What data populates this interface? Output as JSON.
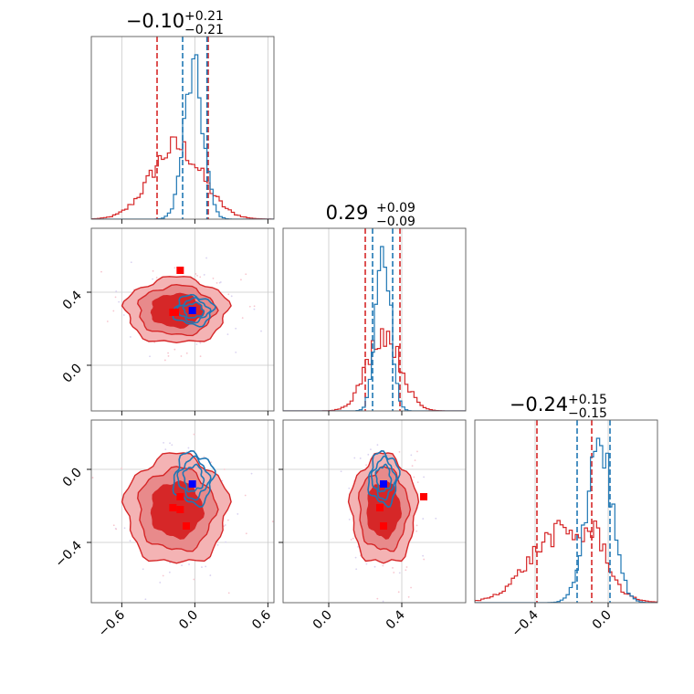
{
  "colors": {
    "red": "#d62728",
    "blue": "#1f77b4",
    "marker_blue": "#0000ff",
    "marker_red": "#ff0000",
    "red_fill_light": "#f4b3b4",
    "red_fill_mid": "#e88a8b"
  },
  "chart_data": {
    "type": "corner",
    "parameters": [
      {
        "title_value": "−0.10",
        "title_plus": "+0.21",
        "title_minus": "−0.21",
        "range": [
          -0.85,
          0.65
        ],
        "ticks": [
          -0.6,
          0.0,
          0.6
        ],
        "tick_labels": [
          "−0.6",
          "0.0",
          "0.6"
        ]
      },
      {
        "title_value": "0.29",
        "title_plus": "+0.09",
        "title_minus": "−0.09",
        "range": [
          -0.25,
          0.75
        ],
        "ticks": [
          0.0,
          0.4
        ],
        "tick_labels": [
          "0.0",
          "0.4"
        ]
      },
      {
        "title_value": "−0.24",
        "title_plus": "+0.15",
        "title_minus": "−0.15",
        "range": [
          -0.73,
          0.27
        ],
        "ticks": [
          -0.4,
          0.0
        ],
        "tick_labels": [
          "−0.4",
          "0.0"
        ]
      }
    ],
    "series": [
      {
        "key": "red",
        "color": "#d62728",
        "centers": [
          -0.15,
          0.3,
          -0.22
        ],
        "sigmas": [
          0.21,
          0.09,
          0.15
        ],
        "quantiles": [
          [
            -0.31,
            0.11
          ],
          [
            0.2,
            0.39
          ],
          [
            -0.39,
            -0.09
          ]
        ]
      },
      {
        "key": "blue",
        "color": "#1f77b4",
        "centers": [
          -0.01,
          0.3,
          -0.05
        ],
        "sigmas": [
          0.08,
          0.04,
          0.07
        ],
        "quantiles": [
          [
            -0.1,
            0.1
          ],
          [
            0.24,
            0.35
          ],
          [
            -0.17,
            0.01
          ]
        ]
      }
    ],
    "markers": {
      "blue": [
        {
          "params": [
            0,
            1
          ],
          "x": -0.02,
          "y": 0.3
        },
        {
          "params": [
            0,
            2
          ],
          "x": -0.02,
          "y": -0.08
        },
        {
          "params": [
            1,
            2
          ],
          "x": 0.3,
          "y": -0.08
        }
      ],
      "red": [
        {
          "params": [
            0,
            1
          ],
          "x": -0.12,
          "y": 0.52
        },
        {
          "params": [
            0,
            1
          ],
          "x": -0.18,
          "y": 0.29
        },
        {
          "params": [
            0,
            1
          ],
          "x": -0.16,
          "y": 0.29
        },
        {
          "params": [
            0,
            2
          ],
          "x": -0.12,
          "y": -0.15
        },
        {
          "params": [
            0,
            2
          ],
          "x": -0.18,
          "y": -0.21
        },
        {
          "params": [
            0,
            2
          ],
          "x": -0.12,
          "y": -0.22
        },
        {
          "params": [
            0,
            2
          ],
          "x": -0.07,
          "y": -0.31
        },
        {
          "params": [
            1,
            2
          ],
          "x": 0.52,
          "y": -0.15
        },
        {
          "params": [
            1,
            2
          ],
          "x": 0.28,
          "y": -0.21
        },
        {
          "params": [
            1,
            2
          ],
          "x": 0.3,
          "y": -0.31
        }
      ]
    },
    "grid": true
  }
}
